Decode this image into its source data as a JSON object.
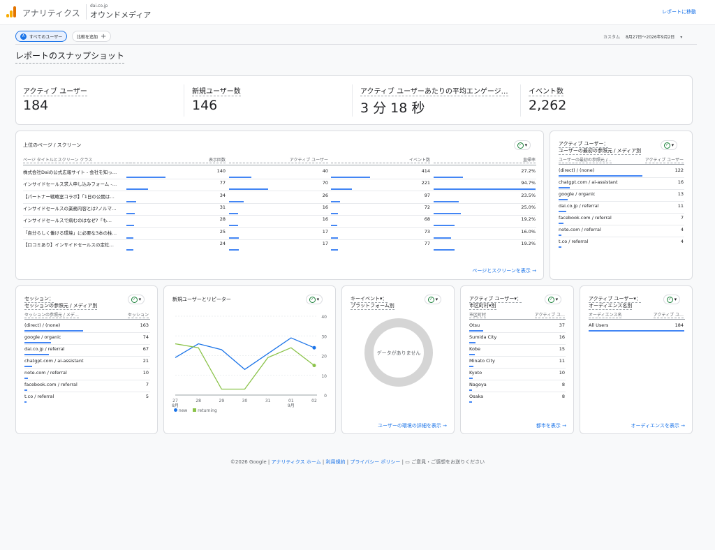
{
  "topbar": {
    "app_title": "アナリティクス",
    "account": "dai.co.jp",
    "property": "オウンドメディア",
    "report_link": "レポートに移動"
  },
  "filter": {
    "segment_badge": "A",
    "segment": "すべてのユーザー",
    "compare": "比較を追加",
    "date_prefix": "カスタム",
    "date_range": "8月27日～2026年9月2日"
  },
  "page_title": "レポートのスナップショット",
  "metrics": [
    {
      "label": "アクティブ ユーザー",
      "value": "184"
    },
    {
      "label": "新規ユーザー数",
      "value": "146"
    },
    {
      "label": "アクティブ ユーザーあたりの平均エンゲージ…",
      "value": "3 分 18 秒"
    },
    {
      "label": "イベント数",
      "value": "2,262"
    }
  ],
  "pages_card": {
    "title": "上位のページ / スクリーン",
    "headers": [
      "ページ タイトルとスクリーン クラス",
      "表示回数",
      "アクティブ ユーザー",
      "イベント数",
      "直帰率"
    ],
    "rows": [
      {
        "name": "株式会社Daiの公式広報サイト - 会社を知っ…",
        "views": "140",
        "users": "40",
        "events": "414",
        "bounce": "27.2%",
        "v": 140,
        "u": 40,
        "e": 414,
        "b": 27.2
      },
      {
        "name": "インサイドセールス求人申し込みフォーム -…",
        "views": "77",
        "users": "70",
        "events": "221",
        "bounce": "94.7%",
        "v": 77,
        "u": 70,
        "e": 221,
        "b": 94.7
      },
      {
        "name": "【パートナー戦略室コラボ】「1日の公開は…",
        "views": "34",
        "users": "26",
        "events": "97",
        "bounce": "23.5%",
        "v": 34,
        "u": 26,
        "e": 97,
        "b": 23.5
      },
      {
        "name": "インサイドセールスの業務内容とは?ノルマ…",
        "views": "31",
        "users": "16",
        "events": "72",
        "bounce": "25.0%",
        "v": 31,
        "u": 16,
        "e": 72,
        "b": 25.0
      },
      {
        "name": "インサイドセールスで病むのはなぜ?「も…",
        "views": "28",
        "users": "16",
        "events": "68",
        "bounce": "19.2%",
        "v": 28,
        "u": 16,
        "e": 68,
        "b": 19.2
      },
      {
        "name": "「自分らしく働ける環境」に必要な3本の柱…",
        "views": "25",
        "users": "17",
        "events": "73",
        "bounce": "16.0%",
        "v": 25,
        "u": 17,
        "e": 73,
        "b": 16.0
      },
      {
        "name": "【口コミあり】インサイドセールスの定社…",
        "views": "24",
        "users": "17",
        "events": "77",
        "bounce": "19.2%",
        "v": 24,
        "u": 17,
        "e": 77,
        "b": 19.2
      }
    ],
    "link": "ページとスクリーンを表示 →"
  },
  "first_source": {
    "title1": "アクティブ ユーザー：",
    "title2": "ユーザーの最初の参照元 / メディア別",
    "headers": [
      "ユーザーの最初の参照元 /…",
      "アクティブ ユーザー"
    ],
    "rows": [
      {
        "name": "(direct) / (none)",
        "value": "122",
        "n": 122
      },
      {
        "name": "chatgpt.com / ai-assistant",
        "value": "16",
        "n": 16
      },
      {
        "name": "google / organic",
        "value": "13",
        "n": 13
      },
      {
        "name": "dai.co.jp / referral",
        "value": "11",
        "n": 11
      },
      {
        "name": "facebook.com / referral",
        "value": "7",
        "n": 7
      },
      {
        "name": "note.com / referral",
        "value": "4",
        "n": 4
      },
      {
        "name": "t.co / referral",
        "value": "4",
        "n": 4
      }
    ]
  },
  "sessions": {
    "title1": "セッション：",
    "title2": "セッションの参照元 / メディア別",
    "headers": [
      "セッションの参照元 / メデ…",
      "セッション"
    ],
    "rows": [
      {
        "name": "(direct) / (none)",
        "value": "163",
        "n": 163
      },
      {
        "name": "google / organic",
        "value": "74",
        "n": 74
      },
      {
        "name": "dai.co.jp / referral",
        "value": "67",
        "n": 67
      },
      {
        "name": "chatgpt.com / ai-assistant",
        "value": "21",
        "n": 21
      },
      {
        "name": "note.com / referral",
        "value": "10",
        "n": 10
      },
      {
        "name": "facebook.com / referral",
        "value": "7",
        "n": 7
      },
      {
        "name": "t.co / referral",
        "value": "5",
        "n": 5
      }
    ]
  },
  "line_card": {
    "title": "新規ユーザーとリピーター",
    "legend_new": "new",
    "legend_ret": "returning",
    "colors": {
      "new": "#1a73e8",
      "returning": "#8bc34a"
    }
  },
  "chart_data": {
    "type": "line",
    "categories": [
      "27\n8月",
      "28",
      "29",
      "30",
      "31",
      "01\n9月",
      "02"
    ],
    "series": [
      {
        "name": "new",
        "values": [
          19,
          26,
          23,
          13,
          21,
          29,
          24
        ]
      },
      {
        "name": "returning",
        "values": [
          26,
          24,
          3,
          3,
          19,
          24,
          15
        ]
      }
    ],
    "ylim": [
      0,
      40
    ],
    "yticks": [
      "40",
      "30",
      "20",
      "10",
      "0"
    ]
  },
  "platform": {
    "title1": "キーイベント▾：",
    "title2": "プラットフォーム別",
    "empty": "データがありません",
    "link": "ユーザーの環境の詳細を表示 →"
  },
  "city": {
    "title1": "アクティブ ユーザー▾：",
    "title2": "市区町村▾別",
    "headers": [
      "市区町村",
      "アクティブ ユ…"
    ],
    "rows": [
      {
        "name": "Otsu",
        "value": "37",
        "n": 37
      },
      {
        "name": "Sumida City",
        "value": "16",
        "n": 16
      },
      {
        "name": "Kobe",
        "value": "15",
        "n": 15
      },
      {
        "name": "Minato City",
        "value": "11",
        "n": 11
      },
      {
        "name": "Kyoto",
        "value": "10",
        "n": 10
      },
      {
        "name": "Nagoya",
        "value": "8",
        "n": 8
      },
      {
        "name": "Osaka",
        "value": "8",
        "n": 8
      }
    ],
    "link": "都市を表示 →"
  },
  "audience": {
    "title1": "アクティブ ユーザー▾：",
    "title2": "オーディエンス名別",
    "headers": [
      "オーディエンス名",
      "アクティブ ユ…"
    ],
    "rows": [
      {
        "name": "All Users",
        "value": "184",
        "n": 184
      }
    ],
    "link": "オーディエンスを表示 →"
  },
  "footer": {
    "copyright": "©2026 Google",
    "home": "アナリティクス ホーム",
    "terms": "利用規約",
    "privacy": "プライバシー ポリシー",
    "feedback": "ご意見・ご感想をお送りください"
  }
}
